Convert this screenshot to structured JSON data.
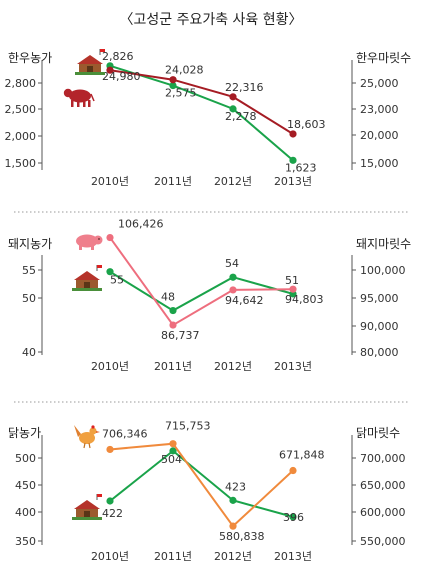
{
  "title": "〈고성군 주요가축 사육 현황〉",
  "colors": {
    "green": "#1aa34a",
    "dark_red": "#a51c24",
    "pink": "#ee6e7e",
    "orange": "#f08a3c",
    "axis": "#555555"
  },
  "chart_data": [
    {
      "type": "line",
      "categories": [
        "2010년",
        "2011년",
        "2012년",
        "2013년"
      ],
      "left_axis": {
        "label": "한우농가",
        "ticks": [
          "1,500",
          "2,000",
          "2,500",
          "2,800"
        ],
        "ylim": [
          1500,
          2900
        ]
      },
      "right_axis": {
        "label": "한우마릿수",
        "ticks": [
          "15,000",
          "20,000",
          "23,000",
          "25,000"
        ],
        "ylim": [
          15000,
          26000
        ]
      },
      "series": [
        {
          "axis": "left",
          "color": "green",
          "icon": "farmhouse-icon",
          "values": [
            2826,
            2575,
            2278,
            1623
          ],
          "labels": [
            "2,826",
            "2,575",
            "2,278",
            "1,623"
          ]
        },
        {
          "axis": "right",
          "color": "dark_red",
          "icon": "cow-icon",
          "values": [
            24980,
            24028,
            22316,
            18603
          ],
          "labels": [
            "24,980",
            "24,028",
            "22,316",
            "18,603"
          ]
        }
      ]
    },
    {
      "type": "line",
      "categories": [
        "2010년",
        "2011년",
        "2012년",
        "2013년"
      ],
      "left_axis": {
        "label": "돼지농가",
        "ticks": [
          "40",
          "50",
          "55"
        ],
        "ylim": [
          40,
          58
        ]
      },
      "right_axis": {
        "label": "돼지마릿수",
        "ticks": [
          "80,000",
          "90,000",
          "95,000",
          "100,000"
        ],
        "ylim": [
          80000,
          102500
        ]
      },
      "series": [
        {
          "axis": "left",
          "color": "green",
          "icon": "farmhouse-icon",
          "values": [
            55,
            48,
            54,
            51
          ],
          "labels": [
            "55",
            "48",
            "54",
            "51"
          ]
        },
        {
          "axis": "right",
          "color": "pink",
          "icon": "pig-icon",
          "values": [
            106426,
            86737,
            94642,
            94803
          ],
          "labels": [
            "106,426",
            "86,737",
            "94,642",
            "94,803"
          ]
        }
      ]
    },
    {
      "type": "line",
      "categories": [
        "2010년",
        "2011년",
        "2012년",
        "2013년"
      ],
      "left_axis": {
        "label": "닭농가",
        "ticks": [
          "350",
          "400",
          "450",
          "500"
        ],
        "ylim": [
          350,
          530
        ]
      },
      "right_axis": {
        "label": "닭마릿수",
        "ticks": [
          "550,000",
          "600,000",
          "650,000",
          "700,000"
        ],
        "ylim": [
          550000,
          730000
        ]
      },
      "series": [
        {
          "axis": "left",
          "color": "green",
          "icon": "farmhouse-icon",
          "values": [
            422,
            504,
            423,
            396
          ],
          "labels": [
            "422",
            "504",
            "423",
            "396"
          ]
        },
        {
          "axis": "right",
          "color": "orange",
          "icon": "rooster-icon",
          "values": [
            706346,
            715753,
            580838,
            671848
          ],
          "labels": [
            "706,346",
            "715,753",
            "580,838",
            "671,848"
          ]
        }
      ]
    }
  ]
}
